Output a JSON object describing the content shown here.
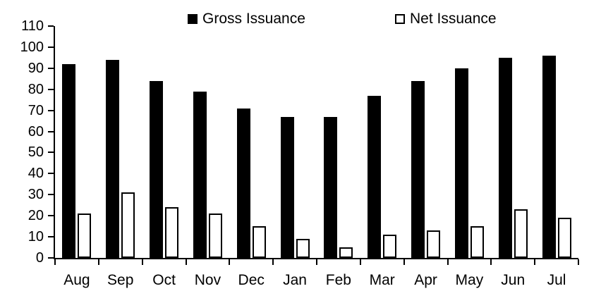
{
  "chart_data": {
    "type": "bar",
    "title": "",
    "xlabel": "",
    "ylabel": "",
    "categories": [
      "Aug",
      "Sep",
      "Oct",
      "Nov",
      "Dec",
      "Jan",
      "Feb",
      "Mar",
      "Apr",
      "May",
      "Jun",
      "Jul"
    ],
    "series": [
      {
        "name": "Gross Issuance",
        "values": [
          92,
          94,
          84,
          79,
          71,
          67,
          67,
          77,
          84,
          90,
          95,
          96
        ],
        "fill": "#000000"
      },
      {
        "name": "Net Issuance",
        "values": [
          21,
          31,
          24,
          21,
          15,
          9,
          5,
          11,
          13,
          15,
          23,
          19
        ],
        "fill": "#ffffff",
        "outline": "#000000"
      }
    ],
    "ylim": [
      0,
      110
    ],
    "yticks": [
      0,
      10,
      20,
      30,
      40,
      50,
      60,
      70,
      80,
      90,
      100,
      110
    ],
    "grid": false,
    "legend_position": "top"
  },
  "colors": {
    "background": "#ffffff",
    "axis": "#000000",
    "text": "#000000",
    "gross_bar": "#000000",
    "net_bar_fill": "#ffffff",
    "net_bar_outline": "#000000"
  }
}
